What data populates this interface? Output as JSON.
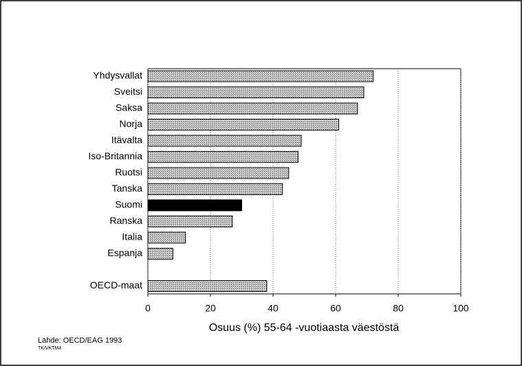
{
  "chart_data": {
    "type": "bar",
    "orientation": "horizontal",
    "categories": [
      "Yhdysvallat",
      "Sveitsi",
      "Saksa",
      "Norja",
      "Itävalta",
      "Iso-Britannia",
      "Ruotsi",
      "Tanska",
      "Suomi",
      "Ranska",
      "Italia",
      "Espanja",
      null,
      "OECD-maat"
    ],
    "values": [
      72,
      69,
      67,
      61,
      49,
      48,
      45,
      43,
      30,
      27,
      12,
      8,
      null,
      38
    ],
    "colors": [
      "#a8a8a8",
      "#a8a8a8",
      "#a8a8a8",
      "#a8a8a8",
      "#a8a8a8",
      "#a8a8a8",
      "#a8a8a8",
      "#a8a8a8",
      "#000000",
      "#a8a8a8",
      "#a8a8a8",
      "#a8a8a8",
      null,
      "#a8a8a8"
    ],
    "xlabel": "Osuus (%) 55-64 -vuotiaasta väestöstä",
    "xlim": [
      0,
      100
    ],
    "xticks": [
      0,
      20,
      40,
      60,
      80,
      100
    ],
    "grid": true,
    "source": "Lähde: OECD/EAG 1993",
    "code": "TK/VKTM4"
  }
}
